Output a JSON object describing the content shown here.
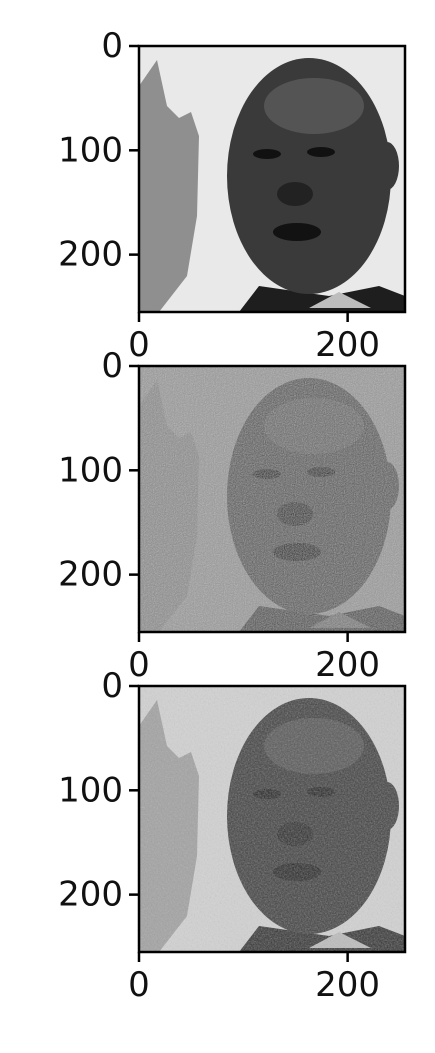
{
  "chart_data": [
    {
      "type": "image",
      "title": "",
      "content": "grayscale face photo (original)",
      "noise": "none",
      "xlim": [
        0,
        255
      ],
      "ylim": [
        255,
        0
      ],
      "xticks": [
        0,
        200
      ],
      "yticks": [
        0,
        100,
        200
      ],
      "xtick_labels": [
        "0",
        "200"
      ],
      "ytick_labels": [
        "0",
        "100",
        "200"
      ]
    },
    {
      "type": "image",
      "title": "",
      "content": "grayscale face photo (noisy)",
      "noise": "heavy",
      "xlim": [
        0,
        255
      ],
      "ylim": [
        255,
        0
      ],
      "xticks": [
        0,
        200
      ],
      "yticks": [
        0,
        100,
        200
      ],
      "xtick_labels": [
        "0",
        "200"
      ],
      "ytick_labels": [
        "0",
        "100",
        "200"
      ]
    },
    {
      "type": "image",
      "title": "",
      "content": "grayscale face photo (denoised)",
      "noise": "light",
      "xlim": [
        0,
        255
      ],
      "ylim": [
        255,
        0
      ],
      "xticks": [
        0,
        200
      ],
      "yticks": [
        0,
        100,
        200
      ],
      "xtick_labels": [
        "0",
        "200"
      ],
      "ytick_labels": [
        "0",
        "100",
        "200"
      ]
    }
  ]
}
